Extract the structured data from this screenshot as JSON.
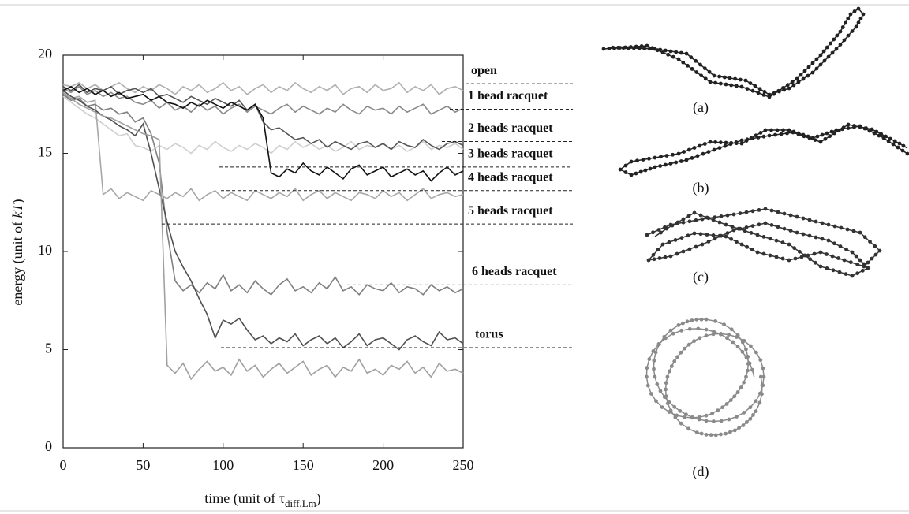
{
  "chart_data": {
    "type": "line",
    "xlabel": {
      "main": "time (unit of τ",
      "sub": "diff,Lm",
      "end": ")"
    },
    "ylabel": {
      "main": "energy (unit of ",
      "italic": "kT",
      "end": ")"
    },
    "xlim": [
      0,
      250
    ],
    "ylim": [
      0,
      20
    ],
    "xticks": [
      0,
      50,
      100,
      150,
      200,
      250
    ],
    "yticks": [
      0,
      5,
      10,
      15,
      20
    ],
    "x": [
      0,
      5,
      10,
      15,
      20,
      25,
      30,
      35,
      40,
      45,
      50,
      55,
      60,
      65,
      70,
      75,
      80,
      85,
      90,
      95,
      100,
      105,
      110,
      115,
      120,
      125,
      130,
      135,
      140,
      145,
      150,
      155,
      160,
      165,
      170,
      175,
      180,
      185,
      190,
      195,
      200,
      205,
      210,
      215,
      220,
      225,
      230,
      235,
      240,
      245,
      250
    ],
    "series": [
      {
        "color": "#b0b0b0",
        "values": [
          18.5,
          18.4,
          18.6,
          18.3,
          18.5,
          18.2,
          18.4,
          18.6,
          18.3,
          18.1,
          18.4,
          18.2,
          18.5,
          18.3,
          18.0,
          18.4,
          18.2,
          18.5,
          18.1,
          18.3,
          18.6,
          18.2,
          18.4,
          18.0,
          18.3,
          18.5,
          18.1,
          18.4,
          18.2,
          18.6,
          18.3,
          18.1,
          18.4,
          18.2,
          18.5,
          18.0,
          18.3,
          18.4,
          18.1,
          18.5,
          18.2,
          18.3,
          18.6,
          18.1,
          18.4,
          18.2,
          18.5,
          18.0,
          18.3,
          18.4,
          18.2
        ]
      },
      {
        "color": "#8a8a8a",
        "values": [
          18.3,
          18.1,
          18.4,
          18.0,
          18.2,
          17.9,
          18.1,
          17.8,
          17.9,
          17.6,
          17.5,
          17.7,
          17.3,
          17.6,
          17.2,
          17.4,
          17.1,
          17.5,
          17.2,
          17.4,
          17.0,
          17.3,
          17.5,
          17.1,
          17.4,
          17.2,
          17.0,
          17.3,
          17.5,
          17.1,
          17.4,
          17.2,
          17.0,
          17.3,
          17.1,
          17.5,
          17.2,
          17.0,
          17.4,
          17.2,
          17.3,
          17.0,
          17.4,
          17.1,
          17.3,
          17.5,
          17.0,
          17.2,
          17.4,
          17.1,
          17.3
        ]
      },
      {
        "color": "#cfcfcf",
        "values": [
          17.9,
          17.6,
          17.3,
          17.0,
          16.8,
          16.5,
          16.2,
          15.9,
          16.0,
          15.4,
          15.3,
          15.1,
          15.4,
          15.2,
          15.5,
          15.3,
          15.0,
          15.4,
          15.2,
          15.6,
          15.3,
          15.1,
          15.4,
          15.2,
          15.5,
          15.3,
          15.0,
          15.4,
          15.2,
          15.6,
          15.3,
          15.5,
          15.2,
          15.4,
          15.1,
          15.3,
          15.6,
          15.2,
          15.4,
          15.3,
          15.5,
          15.2,
          15.4,
          15.1,
          15.3,
          15.6,
          15.2,
          15.4,
          15.3,
          15.5,
          15.2
        ]
      },
      {
        "color": "#555555",
        "values": [
          18.4,
          18.2,
          18.5,
          18.1,
          18.3,
          18.2,
          18.4,
          18.0,
          18.2,
          18.3,
          18.1,
          18.3,
          17.9,
          18.0,
          17.8,
          17.6,
          17.9,
          17.7,
          17.5,
          17.8,
          17.6,
          17.4,
          17.7,
          17.2,
          17.5,
          16.6,
          16.2,
          16.3,
          16.0,
          15.7,
          15.8,
          15.5,
          15.7,
          15.3,
          15.6,
          15.4,
          15.2,
          15.5,
          15.6,
          15.3,
          15.5,
          15.2,
          15.6,
          15.4,
          15.3,
          15.7,
          15.4,
          15.2,
          15.5,
          15.6,
          15.4
        ]
      },
      {
        "color": "#111111",
        "values": [
          18.2,
          18.4,
          18.1,
          18.3,
          18.0,
          18.2,
          17.9,
          18.1,
          17.8,
          17.9,
          18.0,
          17.7,
          17.9,
          17.6,
          17.5,
          17.3,
          17.6,
          17.4,
          17.7,
          17.5,
          17.3,
          17.6,
          17.4,
          17.2,
          17.5,
          16.8,
          14.0,
          13.8,
          14.2,
          14.0,
          14.5,
          14.1,
          13.9,
          14.3,
          14.0,
          13.7,
          14.2,
          14.4,
          13.9,
          14.1,
          14.3,
          13.8,
          14.0,
          14.2,
          13.9,
          14.1,
          13.6,
          14.0,
          14.3,
          13.9,
          14.1
        ]
      },
      {
        "color": "#a8a8a8",
        "values": [
          18.0,
          17.8,
          17.9,
          17.6,
          17.7,
          12.9,
          13.2,
          12.7,
          13.0,
          12.8,
          12.6,
          13.1,
          12.9,
          12.7,
          13.0,
          12.8,
          13.2,
          12.6,
          12.9,
          13.1,
          12.7,
          13.0,
          12.8,
          12.6,
          13.1,
          12.9,
          12.7,
          13.0,
          12.8,
          13.2,
          12.6,
          12.9,
          13.1,
          12.7,
          13.0,
          12.8,
          12.6,
          13.0,
          12.9,
          12.7,
          13.1,
          12.8,
          13.0,
          12.6,
          12.9,
          13.2,
          12.7,
          12.9,
          13.0,
          12.8,
          12.9
        ]
      },
      {
        "color": "#808080",
        "values": [
          18.0,
          17.7,
          17.8,
          17.4,
          17.5,
          17.2,
          17.3,
          17.0,
          17.1,
          16.6,
          16.8,
          16.0,
          14.5,
          11.0,
          8.5,
          8.0,
          8.3,
          7.9,
          8.4,
          8.1,
          8.8,
          8.0,
          8.3,
          7.9,
          8.5,
          8.1,
          7.8,
          8.3,
          8.6,
          8.0,
          8.2,
          7.9,
          8.4,
          8.1,
          8.7,
          8.0,
          8.2,
          7.8,
          8.3,
          8.1,
          8.0,
          8.4,
          7.9,
          8.2,
          8.1,
          7.8,
          8.3,
          8.0,
          8.2,
          7.9,
          8.1
        ]
      },
      {
        "color": "#505050",
        "values": [
          18.2,
          17.9,
          17.7,
          17.4,
          17.2,
          16.9,
          16.7,
          16.4,
          16.2,
          15.9,
          16.5,
          15.0,
          13.2,
          11.5,
          10.0,
          9.2,
          8.5,
          7.6,
          6.8,
          5.6,
          6.5,
          6.3,
          6.6,
          6.0,
          5.5,
          5.7,
          5.3,
          5.6,
          5.4,
          5.8,
          5.2,
          5.5,
          5.7,
          5.3,
          5.6,
          5.1,
          5.4,
          5.8,
          5.2,
          5.5,
          5.6,
          5.3,
          5.0,
          5.5,
          5.7,
          5.4,
          5.2,
          5.9,
          5.5,
          5.6,
          5.3
        ]
      },
      {
        "color": "#a0a0a0",
        "values": [
          18.1,
          17.8,
          17.5,
          17.3,
          17.1,
          16.9,
          16.8,
          16.6,
          16.4,
          16.2,
          16.0,
          15.9,
          15.7,
          4.2,
          3.8,
          4.3,
          3.5,
          4.0,
          4.4,
          3.9,
          4.1,
          3.7,
          4.5,
          3.9,
          4.2,
          3.6,
          4.0,
          4.3,
          3.8,
          4.1,
          4.4,
          3.7,
          4.0,
          4.2,
          3.6,
          4.1,
          3.9,
          4.5,
          3.8,
          4.0,
          3.7,
          4.2,
          4.0,
          4.4,
          3.8,
          4.1,
          3.6,
          4.3,
          3.9,
          4.0,
          3.8
        ]
      }
    ],
    "annotations": [
      {
        "label": "open",
        "value": 18.55
      },
      {
        "label": "1 head racquet",
        "value": 17.25
      },
      {
        "label": "2 heads racquet",
        "value": 15.6
      },
      {
        "label": "3 heads racquet",
        "value": 14.3
      },
      {
        "label": "4 heads racquet",
        "value": 13.1
      },
      {
        "label": "5 heads racquet",
        "value": 11.4
      },
      {
        "label": "6 heads racquet",
        "value": 8.3
      },
      {
        "label": "torus",
        "value": 5.1
      }
    ]
  },
  "figure_labels": [
    "(a)",
    "(b)",
    "(c)",
    "(d)"
  ]
}
